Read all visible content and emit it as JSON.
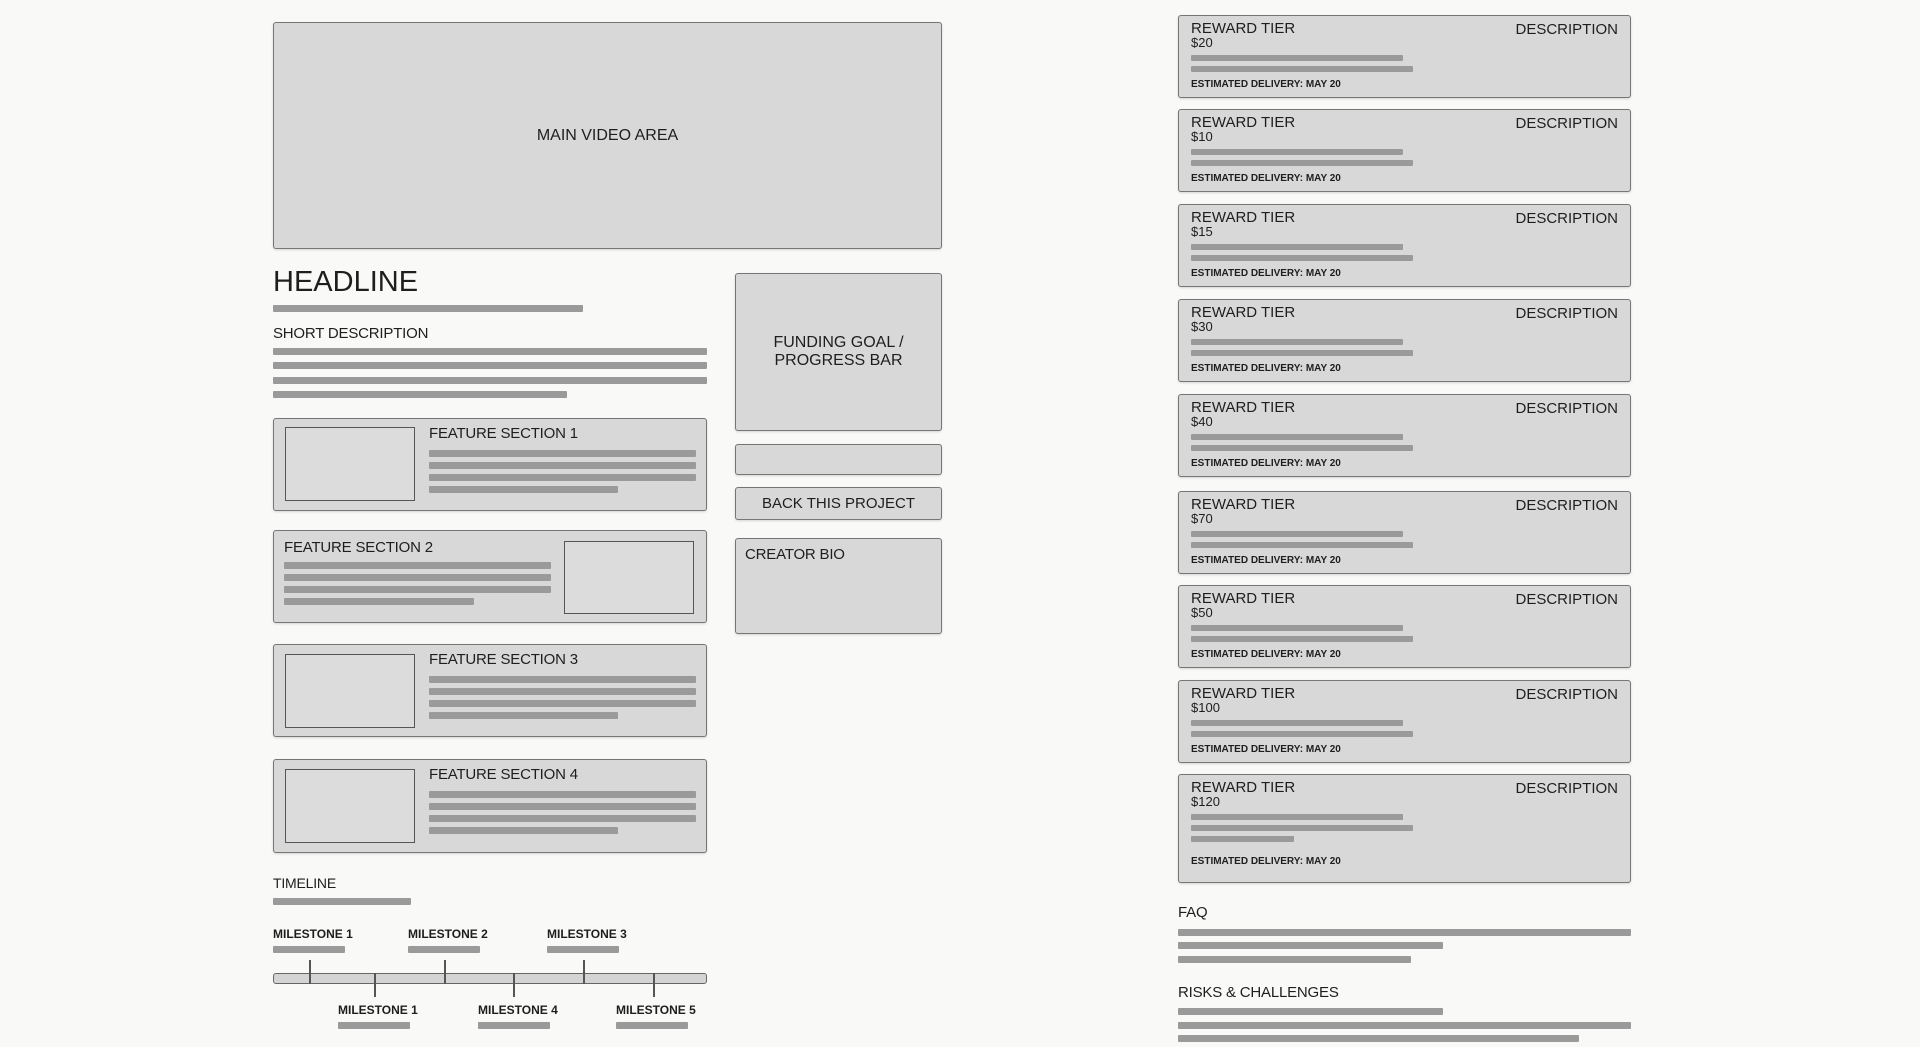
{
  "main_video": {
    "label": "MAIN VIDEO AREA"
  },
  "headline": "HEADLINE",
  "short_description": "SHORT DESCRIPTION",
  "features": [
    {
      "title": "FEATURE SECTION 1"
    },
    {
      "title": "FEATURE SECTION 2"
    },
    {
      "title": "FEATURE SECTION 3"
    },
    {
      "title": "FEATURE SECTION 4"
    }
  ],
  "sidebar": {
    "funding_line1": "FUNDING GOAL /",
    "funding_line2": "PROGRESS BAR",
    "back_button": "BACK THIS PROJECT",
    "creator_bio": "CREATOR BIO"
  },
  "timeline": {
    "title": "TIMELINE",
    "milestones_top": [
      "MILESTONE 1",
      "MILESTONE 2",
      "MILESTONE 3"
    ],
    "milestones_bottom": [
      "MILESTONE 1",
      "MILESTONE 4",
      "MILESTONE 5"
    ]
  },
  "reward_tiers": [
    {
      "title": "REWARD TIER",
      "amount": "$20",
      "description": "DESCRIPTION",
      "delivery": "ESTIMATED DELIVERY: MAY 20"
    },
    {
      "title": "REWARD TIER",
      "amount": "$10",
      "description": "DESCRIPTION",
      "delivery": "ESTIMATED DELIVERY: MAY 20"
    },
    {
      "title": "REWARD TIER",
      "amount": "$15",
      "description": "DESCRIPTION",
      "delivery": "ESTIMATED DELIVERY: MAY 20"
    },
    {
      "title": "REWARD TIER",
      "amount": "$30",
      "description": "DESCRIPTION",
      "delivery": "ESTIMATED DELIVERY: MAY 20"
    },
    {
      "title": "REWARD TIER",
      "amount": "$40",
      "description": "DESCRIPTION",
      "delivery": "ESTIMATED DELIVERY: MAY 20"
    },
    {
      "title": "REWARD TIER",
      "amount": "$70",
      "description": "DESCRIPTION",
      "delivery": "ESTIMATED DELIVERY: MAY 20"
    },
    {
      "title": "REWARD TIER",
      "amount": "$50",
      "description": "DESCRIPTION",
      "delivery": "ESTIMATED DELIVERY: MAY 20"
    },
    {
      "title": "REWARD TIER",
      "amount": "$100",
      "description": "DESCRIPTION",
      "delivery": "ESTIMATED DELIVERY: MAY 20"
    },
    {
      "title": "REWARD TIER",
      "amount": "$120",
      "description": "DESCRIPTION",
      "delivery": "ESTIMATED DELIVERY: MAY 20"
    }
  ],
  "faq": {
    "title": "FAQ"
  },
  "risks": {
    "title": "RISKS & CHALLENGES"
  }
}
